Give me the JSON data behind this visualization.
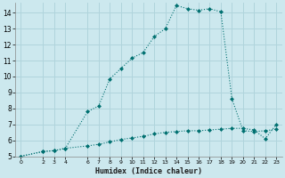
{
  "xlabel": "Humidex (Indice chaleur)",
  "bg_color": "#cce8ee",
  "grid_color": "#b0d4dc",
  "line_color": "#007070",
  "xlim": [
    -0.5,
    23.5
  ],
  "ylim": [
    5,
    14.6
  ],
  "yticks": [
    5,
    6,
    7,
    8,
    9,
    10,
    11,
    12,
    13,
    14
  ],
  "xticks": [
    0,
    2,
    3,
    4,
    6,
    7,
    8,
    9,
    10,
    11,
    12,
    13,
    14,
    15,
    16,
    17,
    18,
    19,
    20,
    21,
    22,
    23
  ],
  "series1_x": [
    0,
    2,
    3,
    4,
    6,
    7,
    8,
    9,
    10,
    11,
    12,
    13,
    14,
    15,
    16,
    17,
    18,
    19,
    20,
    21,
    22,
    23
  ],
  "series1_y": [
    5.0,
    5.3,
    5.35,
    5.5,
    5.65,
    5.75,
    5.9,
    6.05,
    6.15,
    6.25,
    6.4,
    6.5,
    6.55,
    6.6,
    6.6,
    6.65,
    6.7,
    6.75,
    6.75,
    6.65,
    6.1,
    7.0
  ],
  "series2_x": [
    0,
    2,
    3,
    4,
    6,
    7,
    8,
    9,
    10,
    11,
    12,
    13,
    14,
    15,
    16,
    17,
    18,
    19,
    20,
    21,
    22,
    23
  ],
  "series2_y": [
    5.0,
    5.3,
    5.35,
    5.5,
    7.8,
    8.15,
    9.85,
    10.5,
    11.15,
    11.5,
    12.5,
    13.0,
    14.45,
    14.25,
    14.15,
    14.25,
    14.05,
    8.6,
    6.6,
    6.55,
    6.6,
    6.7
  ]
}
